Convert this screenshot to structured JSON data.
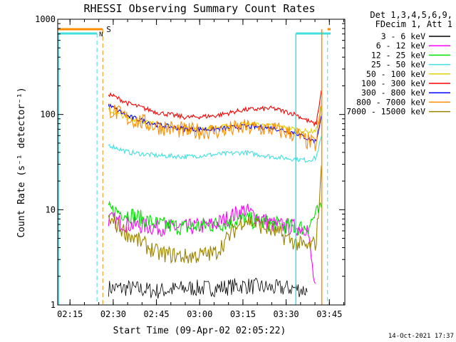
{
  "chart_data": {
    "type": "line",
    "title": "RHESSI Observing Summary Count Rates",
    "xlabel": "Start Time (09-Apr-02 02:05:22)",
    "ylabel": "Count Rate (s⁻¹ detector⁻¹)",
    "ylim": [
      1,
      1000
    ],
    "yscale": "log",
    "xlim_minutes": [
      5.37,
      105.0
    ],
    "x_ticks": [
      "02:15",
      "02:30",
      "02:45",
      "03:00",
      "03:15",
      "03:30",
      "03:45"
    ],
    "y_ticks": [
      "1",
      "10",
      "100",
      "1000"
    ],
    "legend_position": "top-right outside plot",
    "legend_header": [
      "Det 1,3,4,5,6,9,",
      "FDecim 1, Att 1"
    ],
    "timestamp": "14-Oct-2021 17:37",
    "flags": [
      {
        "label": "S",
        "color": "#ff8c00"
      },
      {
        "label": "N",
        "color": "#40e0e0"
      }
    ],
    "x_minutes": [
      23,
      30,
      40,
      50,
      60,
      70,
      80,
      88,
      92,
      95,
      97
    ],
    "series": [
      {
        "name": "3 - 6 keV",
        "color": "#000000",
        "values": [
          1.5,
          1.5,
          1.4,
          1.5,
          1.5,
          1.6,
          1.5,
          1.5,
          1.4,
          null,
          null
        ]
      },
      {
        "name": "6 - 12 keV",
        "color": "#ff00ff",
        "values": [
          8,
          7,
          6.5,
          6.5,
          7,
          10,
          7,
          6.5,
          6.5,
          1.2,
          null
        ]
      },
      {
        "name": "12 - 25 keV",
        "color": "#00e000",
        "values": [
          10,
          9,
          7,
          6.5,
          7,
          8,
          7,
          6.5,
          6.5,
          9,
          10
        ]
      },
      {
        "name": "25 - 50 keV",
        "color": "#40e0e0",
        "values": [
          48,
          40,
          37,
          36,
          38,
          40,
          36,
          34,
          33,
          35,
          60
        ]
      },
      {
        "name": "50 - 100 keV",
        "color": "#e0d000",
        "values": [
          110,
          92,
          78,
          70,
          72,
          80,
          76,
          70,
          66,
          68,
          120
        ]
      },
      {
        "name": "100 - 300 keV",
        "color": "#ff0000",
        "values": [
          165,
          130,
          105,
          93,
          97,
          112,
          116,
          100,
          86,
          78,
          190
        ]
      },
      {
        "name": "300 - 800 keV",
        "color": "#0000ff",
        "values": [
          125,
          95,
          78,
          70,
          70,
          75,
          72,
          64,
          56,
          52,
          100
        ]
      },
      {
        "name": "800 - 7000 keV",
        "color": "#ff8c00",
        "values": [
          115,
          90,
          75,
          67,
          67,
          73,
          70,
          62,
          52,
          48,
          130
        ]
      },
      {
        "name": "7000 - 15000 keV",
        "color": "#9a8200",
        "values": [
          8,
          5.5,
          3.5,
          3.2,
          3.5,
          8,
          6,
          4.5,
          4,
          4.5,
          28
        ]
      }
    ]
  }
}
